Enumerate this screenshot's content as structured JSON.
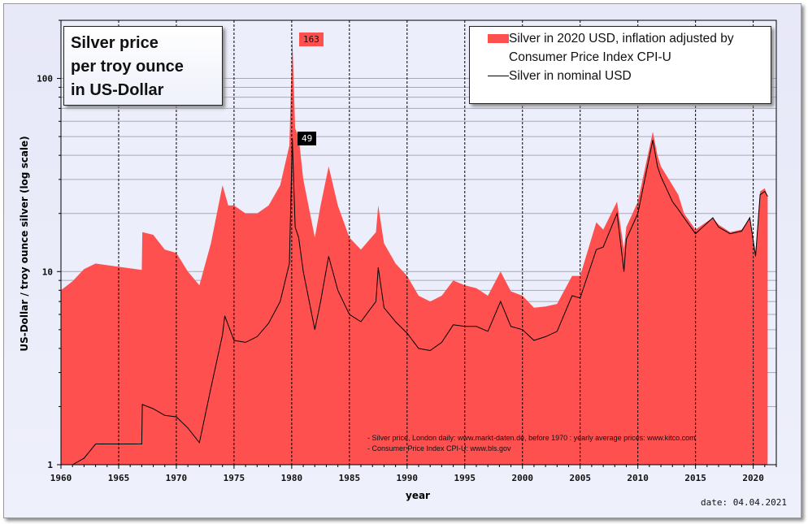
{
  "title": [
    "Silver price",
    "per troy ounce",
    "in US-Dollar"
  ],
  "legend": {
    "real": [
      "Silver in 2020 USD, inflation adjusted by",
      "Consumer Price Index CPI-U"
    ],
    "nominal": "Silver in nominal USD"
  },
  "source": [
    "- Silver price, London daily: www.markt-daten.de,  before 1970 :  yearly  average prices: www.kitco.com",
    "- Consumer Price Index CPI-U: www.bls.gov"
  ],
  "date": "date:  04.04.2021",
  "peaks": {
    "real": "163",
    "nominal": "49"
  },
  "colors": {
    "real": "#ff5050",
    "nominal": "#000000",
    "background": "#e9eaf8"
  },
  "chart_data": {
    "type": "area",
    "xlabel": "year",
    "ylabel": "US-Dollar / troy ounce silver (log scale)",
    "xlim": [
      1960,
      2022
    ],
    "ylim": [
      1,
      200
    ],
    "yscale": "log",
    "x_ticks": [
      "1960",
      "1965",
      "1970",
      "1975",
      "1980",
      "1985",
      "1990",
      "1995",
      "2000",
      "2005",
      "2010",
      "2015",
      "2020"
    ],
    "y_ticks": [
      "1",
      "10",
      "100"
    ],
    "grid": true,
    "legend_position": "top-right",
    "series": [
      {
        "name": "Silver in 2020 USD, inflation adjusted by Consumer Price Index CPI-U",
        "kind": "area",
        "x": [
          1960,
          1961,
          1962,
          1963,
          1967,
          1967.05,
          1968,
          1969,
          1970,
          1971,
          1972,
          1973,
          1974,
          1974.5,
          1975,
          1976,
          1977,
          1978,
          1979,
          1979.8,
          1980.05,
          1980.3,
          1980.6,
          1981,
          1982,
          1982.5,
          1983.2,
          1984,
          1985,
          1986,
          1987.3,
          1987.5,
          1988,
          1989,
          1990,
          1991,
          1992,
          1993,
          1994,
          1995,
          1996,
          1997,
          1998.1,
          1999,
          2000,
          2001,
          2002,
          2003,
          2004.3,
          2005,
          2006.4,
          2007,
          2008.2,
          2008.8,
          2009,
          2010,
          2011.3,
          2011.7,
          2012,
          2013,
          2013.5,
          2014,
          2015,
          2016.5,
          2017,
          2018,
          2019,
          2019.7,
          2020.2,
          2020.6,
          2021,
          2021.25
        ],
        "values": [
          8.0,
          8.9,
          10.3,
          11,
          10.2,
          16,
          15.5,
          13,
          12.5,
          10,
          8.5,
          14,
          28,
          22,
          22,
          20,
          20,
          22,
          28,
          45,
          163,
          55,
          50,
          30,
          15,
          22,
          35,
          22,
          15,
          13,
          16,
          22,
          14,
          11,
          9.5,
          7.5,
          7,
          7.5,
          9,
          8.5,
          8.2,
          7.5,
          10,
          7.9,
          7.5,
          6.5,
          6.6,
          6.8,
          9.5,
          9.5,
          18,
          16.5,
          23,
          13,
          17,
          23,
          53,
          40,
          35,
          28,
          25,
          20,
          16.5,
          19,
          17.5,
          16,
          16.5,
          19,
          12.5,
          26,
          27,
          24.5
        ]
      },
      {
        "name": "Silver in nominal USD",
        "kind": "line",
        "x": [
          1960,
          1961,
          1962,
          1963,
          1967,
          1967.05,
          1968,
          1969,
          1970,
          1971,
          1972,
          1973,
          1974,
          1974.2,
          1975,
          1976,
          1977,
          1978,
          1979,
          1979.8,
          1980.05,
          1980.3,
          1980.6,
          1981,
          1982,
          1982.5,
          1983.2,
          1984,
          1985,
          1986,
          1987.3,
          1987.5,
          1988,
          1989,
          1990,
          1991,
          1992,
          1993,
          1994,
          1995,
          1996,
          1997,
          1998.1,
          1999,
          2000,
          2001,
          2002,
          2003,
          2004.3,
          2005,
          2006.4,
          2007,
          2008.2,
          2008.8,
          2009,
          2010,
          2011.3,
          2011.7,
          2012,
          2013,
          2013.5,
          2014,
          2015,
          2016.5,
          2017,
          2018,
          2019,
          2019.7,
          2020.2,
          2020.6,
          2021,
          2021.25
        ],
        "values": [
          0.91,
          1.0,
          1.08,
          1.28,
          1.28,
          2.05,
          1.95,
          1.8,
          1.77,
          1.55,
          1.3,
          2.5,
          4.7,
          5.9,
          4.4,
          4.3,
          4.6,
          5.4,
          7,
          11,
          49,
          17,
          15,
          10,
          5,
          7,
          12,
          8,
          6,
          5.5,
          7,
          10.5,
          6.5,
          5.5,
          4.8,
          4,
          3.9,
          4.3,
          5.3,
          5.2,
          5.2,
          4.9,
          7,
          5.2,
          5,
          4.4,
          4.6,
          4.9,
          7.5,
          7.3,
          13,
          13.4,
          20,
          10,
          14.7,
          20,
          48,
          35,
          31,
          23,
          21,
          19,
          15.7,
          19,
          17,
          15.7,
          16.2,
          19,
          12,
          25,
          26,
          24.5
        ]
      }
    ]
  }
}
